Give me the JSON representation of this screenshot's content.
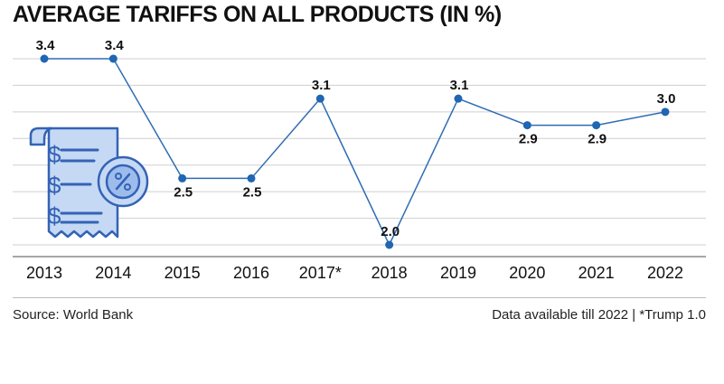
{
  "title": "AVERAGE TARIFFS ON ALL PRODUCTS (IN %)",
  "footer": {
    "source": "Source: World Bank",
    "note": "Data available till 2022 | *Trump 1.0"
  },
  "icon": "tariff-receipt-icon",
  "colors": {
    "line": "#2f6db3",
    "point": "#1f66b3",
    "icon_fill": "#c5d9f5",
    "icon_stroke": "#3463b5"
  },
  "chart_data": {
    "type": "line",
    "title": "AVERAGE TARIFFS ON ALL PRODUCTS (IN %)",
    "xlabel": "",
    "ylabel": "",
    "categories": [
      "2013",
      "2014",
      "2015",
      "2016",
      "2017*",
      "2018",
      "2019",
      "2020",
      "2021",
      "2022"
    ],
    "values": [
      3.4,
      3.4,
      2.5,
      2.5,
      3.1,
      2.0,
      3.1,
      2.9,
      2.9,
      3.0
    ],
    "data_labels": [
      "3.4",
      "3.4",
      "2.5",
      "2.5",
      "3.1",
      "2.0",
      "3.1",
      "2.9",
      "2.9",
      "3.0"
    ],
    "label_position": [
      "above",
      "above",
      "below",
      "below",
      "above",
      "above",
      "above",
      "below",
      "below",
      "above"
    ],
    "ylim": [
      2.0,
      3.4
    ],
    "grid": true,
    "legend": "none"
  }
}
